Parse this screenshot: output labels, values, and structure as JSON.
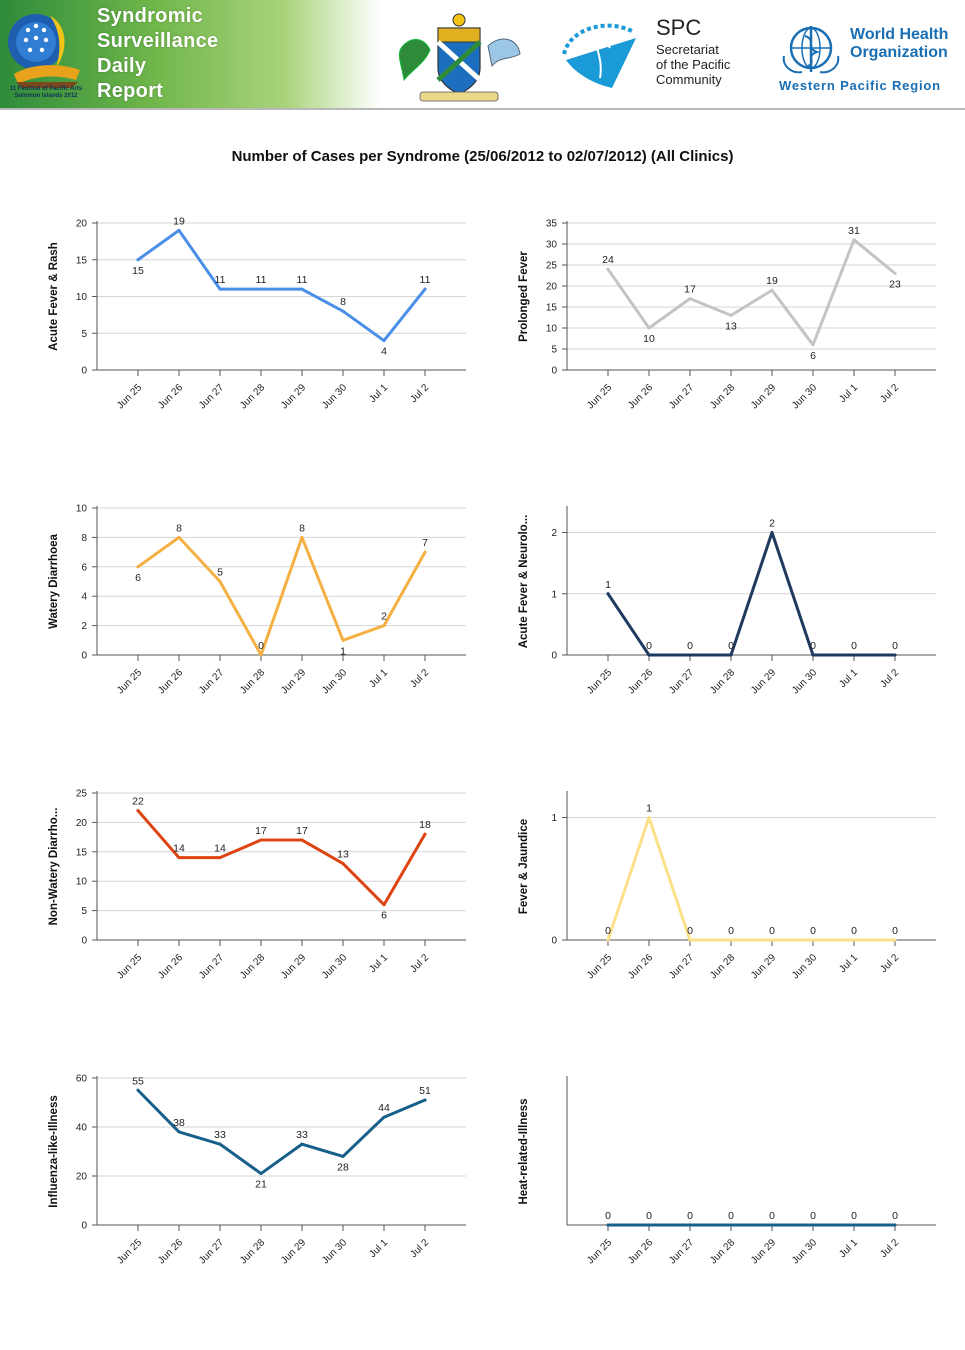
{
  "header": {
    "report_title_lines": [
      "Syndromic",
      "Surveillance",
      "Daily",
      "Report"
    ],
    "festival_caption_lines": [
      "11   Festival of Pacific Arts",
      "Solomon Islands 2012"
    ],
    "spc_abbrev": "SPC",
    "spc_name_lines": [
      "Secretariat",
      "of the Pacific",
      "Community"
    ],
    "who_name_lines": [
      "World Health",
      "Organization"
    ],
    "who_region": "Western Pacific Region",
    "colors": {
      "banner_green": "#2e8b3a",
      "who_blue": "#1a6fb4",
      "spc_teal": "#1a9ad6"
    }
  },
  "report_heading": "Number of Cases per Syndrome (25/06/2012 to 02/07/2012) (All Clinics)",
  "chart_data": [
    {
      "type": "line",
      "ylabel": "Acute Fever & Rash",
      "categories": [
        "Jun 25",
        "Jun 26",
        "Jun 27",
        "Jun 28",
        "Jun 29",
        "Jun 30",
        "Jul 1",
        "Jul 2"
      ],
      "values": [
        15,
        19,
        11,
        11,
        11,
        8,
        4,
        11
      ],
      "ylim": [
        0,
        20
      ],
      "yticks": [
        0,
        5,
        10,
        15,
        20
      ],
      "color": "#4a8fe7",
      "grid": true
    },
    {
      "type": "line",
      "ylabel": "Prolonged Fever",
      "categories": [
        "Jun 25",
        "Jun 26",
        "Jun 27",
        "Jun 28",
        "Jun 29",
        "Jun 30",
        "Jul 1",
        "Jul 2"
      ],
      "values": [
        24,
        10,
        17,
        13,
        19,
        6,
        31,
        23
      ],
      "ylim": [
        0,
        35
      ],
      "yticks": [
        0,
        5,
        10,
        15,
        20,
        25,
        30,
        35
      ],
      "color": "#c4c4c4",
      "grid": true
    },
    {
      "type": "line",
      "ylabel": "Watery Diarrhoea",
      "categories": [
        "Jun 25",
        "Jun 26",
        "Jun 27",
        "Jun 28",
        "Jun 29",
        "Jun 30",
        "Jul 1",
        "Jul 2"
      ],
      "values": [
        6,
        8,
        5,
        0,
        8,
        1,
        2,
        7
      ],
      "ylim": [
        0,
        10
      ],
      "yticks": [
        0,
        2,
        4,
        6,
        8,
        10
      ],
      "color": "#f4b042",
      "grid": true
    },
    {
      "type": "line",
      "ylabel": "Acute Fever & Neurolo...",
      "categories": [
        "Jun 25",
        "Jun 26",
        "Jun 27",
        "Jun 28",
        "Jun 29",
        "Jun 30",
        "Jul 1",
        "Jul 2"
      ],
      "values": [
        1,
        0,
        0,
        0,
        2,
        0,
        0,
        0
      ],
      "ylim": [
        0,
        2.4
      ],
      "yticks": [
        0,
        1,
        2
      ],
      "color": "#1f3a5f",
      "grid": true
    },
    {
      "type": "line",
      "ylabel": "Non-Watery Diarrho...",
      "categories": [
        "Jun 25",
        "Jun 26",
        "Jun 27",
        "Jun 28",
        "Jun 29",
        "Jun 30",
        "Jul 1",
        "Jul 2"
      ],
      "values": [
        22,
        14,
        14,
        17,
        17,
        13,
        6,
        18
      ],
      "ylim": [
        0,
        25
      ],
      "yticks": [
        0,
        5,
        10,
        15,
        20,
        25
      ],
      "color": "#dd4411",
      "grid": true
    },
    {
      "type": "line",
      "ylabel": "Fever & Jaundice",
      "categories": [
        "Jun 25",
        "Jun 26",
        "Jun 27",
        "Jun 28",
        "Jun 29",
        "Jun 30",
        "Jul 1",
        "Jul 2"
      ],
      "values": [
        0,
        1,
        0,
        0,
        0,
        0,
        0,
        0
      ],
      "ylim": [
        0,
        1.2
      ],
      "yticks": [
        0,
        1
      ],
      "color": "#fbe08a",
      "grid": true
    },
    {
      "type": "line",
      "ylabel": "Influenza-like-Illness",
      "categories": [
        "Jun 25",
        "Jun 26",
        "Jun 27",
        "Jun 28",
        "Jun 29",
        "Jun 30",
        "Jul 1",
        "Jul 2"
      ],
      "values": [
        55,
        38,
        33,
        21,
        33,
        28,
        44,
        51
      ],
      "ylim": [
        0,
        60
      ],
      "yticks": [
        0,
        20,
        40,
        60
      ],
      "color": "#17608a",
      "grid": true
    },
    {
      "type": "line",
      "ylabel": "Heat-related-Illness",
      "categories": [
        "Jun 25",
        "Jun 26",
        "Jun 27",
        "Jun 28",
        "Jun 29",
        "Jun 30",
        "Jul 1",
        "Jul 2"
      ],
      "values": [
        0,
        0,
        0,
        0,
        0,
        0,
        0,
        0
      ],
      "ylim": [
        0,
        1
      ],
      "yticks": [],
      "color": "#17608a",
      "grid": false
    }
  ]
}
